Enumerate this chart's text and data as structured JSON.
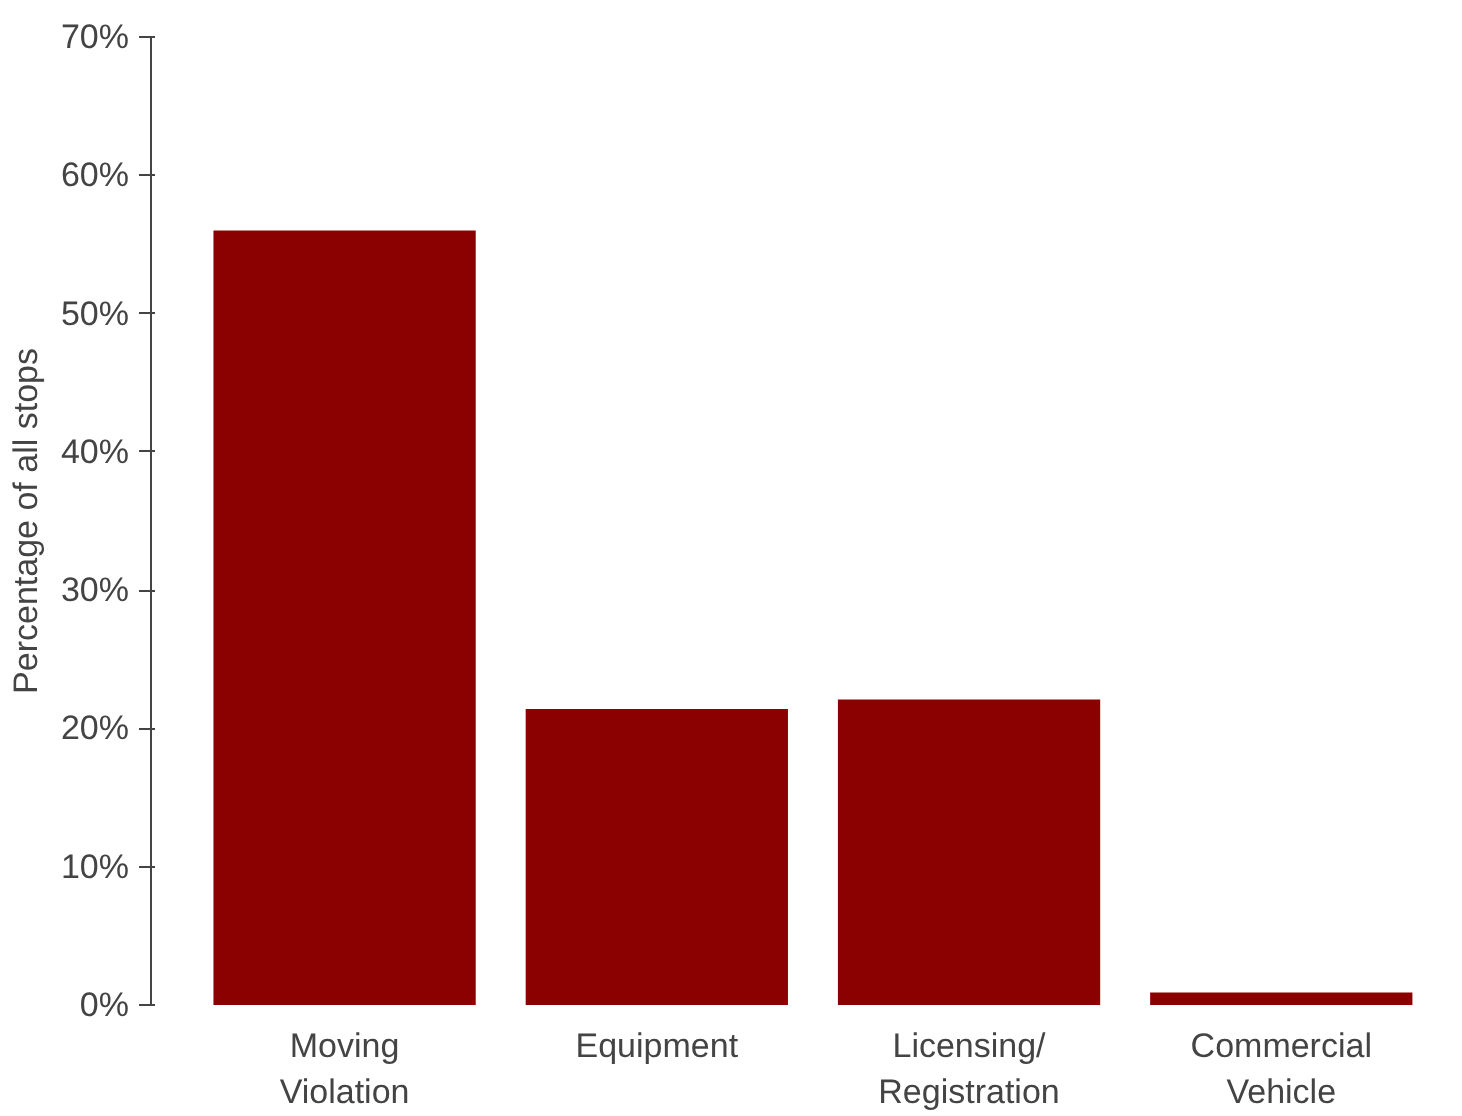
{
  "chart_data": {
    "type": "bar",
    "ylabel": "Percentage of all stops",
    "categories": [
      "Moving\nViolation",
      "Equipment",
      "Licensing/\nRegistration",
      "Commercial\nVehicle"
    ],
    "values": [
      56,
      21.4,
      22.1,
      0.9
    ],
    "color": "#8b0000",
    "ylim": [
      0,
      70
    ],
    "yticks": [
      {
        "value": 0,
        "label": "0%"
      },
      {
        "value": 10,
        "label": "10%"
      },
      {
        "value": 20,
        "label": "20%"
      },
      {
        "value": 30,
        "label": "30%"
      },
      {
        "value": 40,
        "label": "40%"
      },
      {
        "value": 50,
        "label": "50%"
      },
      {
        "value": 60,
        "label": "60%"
      },
      {
        "value": 70,
        "label": "70%"
      }
    ],
    "grid": false
  }
}
